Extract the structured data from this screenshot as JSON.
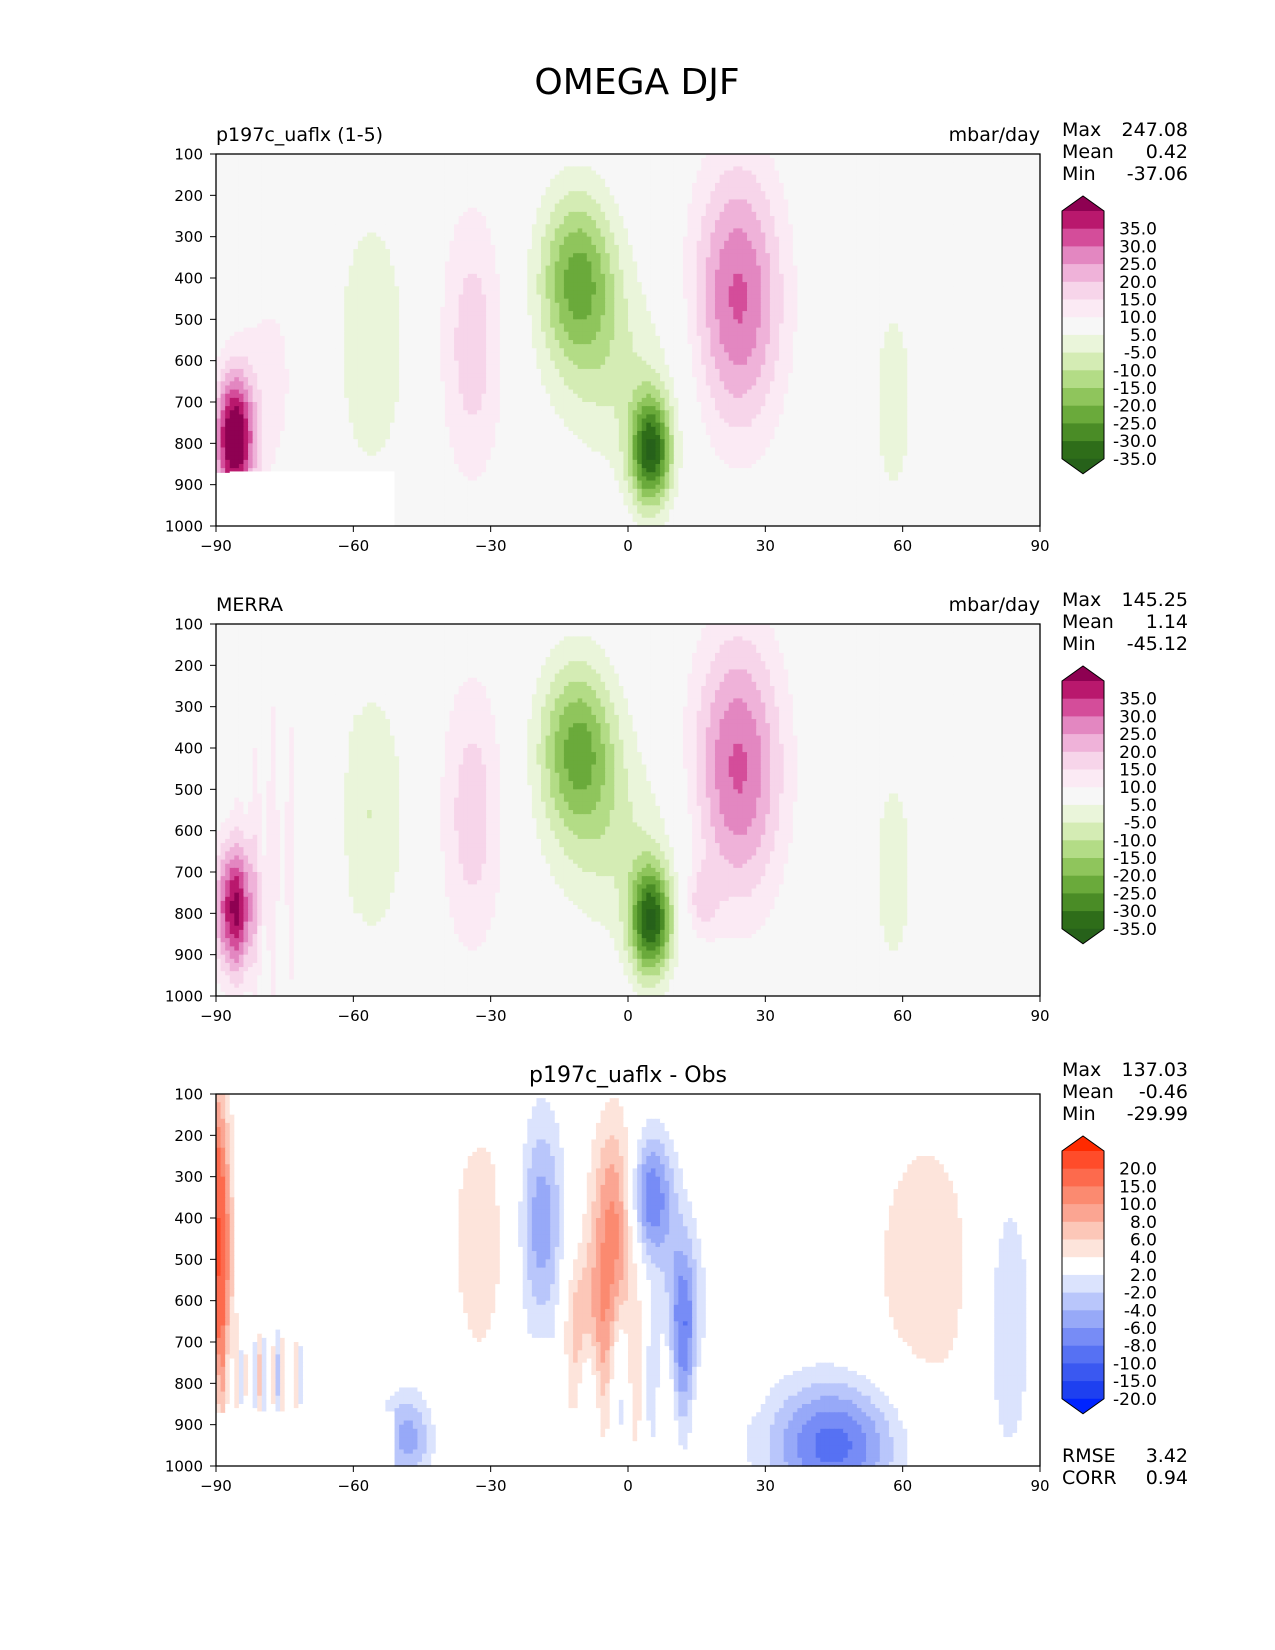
{
  "title": "OMEGA DJF",
  "chart_data": [
    {
      "type": "heatmap",
      "name": "test",
      "left_title": "p197c_uaflx (1-5)",
      "center_title": "",
      "units": "mbar/day",
      "stats": [
        {
          "label": "Max",
          "value": "247.08"
        },
        {
          "label": "Mean",
          "value": "0.42"
        },
        {
          "label": "Min",
          "value": "-37.06"
        }
      ],
      "footer_stats": [],
      "x_ticks": [
        "−90",
        "−60",
        "−30",
        "0",
        "30",
        "60",
        "90"
      ],
      "x_values": [
        -90,
        -60,
        -30,
        0,
        30,
        60,
        90
      ],
      "xlim": [
        -90,
        90
      ],
      "y_ticks": [
        "100",
        "200",
        "300",
        "400",
        "500",
        "600",
        "700",
        "800",
        "900",
        "1000"
      ],
      "y_values": [
        100,
        200,
        300,
        400,
        500,
        600,
        700,
        800,
        900,
        1000
      ],
      "ylim": [
        100,
        1000
      ],
      "colorbar_labels": [
        "35.0",
        "30.0",
        "25.0",
        "20.0",
        "15.0",
        "10.0",
        "5.0",
        "-5.0",
        "-10.0",
        "-15.0",
        "-20.0",
        "-25.0",
        "-30.0",
        "-35.0"
      ],
      "colors": [
        "#8e0152",
        "#b9186d",
        "#d44d9a",
        "#e387c1",
        "#efb2d9",
        "#f7d5ea",
        "#fbeaf4",
        "#f7f7f7",
        "#eaf5da",
        "#d4ecb4",
        "#b3dc86",
        "#8fc55c",
        "#6aaa3b",
        "#4a8c26",
        "#2e6d19",
        "#26611a"
      ]
    },
    {
      "type": "heatmap",
      "name": "reference",
      "left_title": "MERRA",
      "center_title": "",
      "units": "mbar/day",
      "stats": [
        {
          "label": "Max",
          "value": "145.25"
        },
        {
          "label": "Mean",
          "value": "1.14"
        },
        {
          "label": "Min",
          "value": "-45.12"
        }
      ],
      "footer_stats": [],
      "x_ticks": [
        "−90",
        "−60",
        "−30",
        "0",
        "30",
        "60",
        "90"
      ],
      "x_values": [
        -90,
        -60,
        -30,
        0,
        30,
        60,
        90
      ],
      "xlim": [
        -90,
        90
      ],
      "y_ticks": [
        "100",
        "200",
        "300",
        "400",
        "500",
        "600",
        "700",
        "800",
        "900",
        "1000"
      ],
      "y_values": [
        100,
        200,
        300,
        400,
        500,
        600,
        700,
        800,
        900,
        1000
      ],
      "ylim": [
        100,
        1000
      ],
      "colorbar_labels": [
        "35.0",
        "30.0",
        "25.0",
        "20.0",
        "15.0",
        "10.0",
        "5.0",
        "-5.0",
        "-10.0",
        "-15.0",
        "-20.0",
        "-25.0",
        "-30.0",
        "-35.0"
      ],
      "colors": [
        "#8e0152",
        "#b9186d",
        "#d44d9a",
        "#e387c1",
        "#efb2d9",
        "#f7d5ea",
        "#fbeaf4",
        "#f7f7f7",
        "#eaf5da",
        "#d4ecb4",
        "#b3dc86",
        "#8fc55c",
        "#6aaa3b",
        "#4a8c26",
        "#2e6d19",
        "#26611a"
      ]
    },
    {
      "type": "heatmap",
      "name": "difference",
      "left_title": "",
      "center_title": "p197c_uaflx - Obs",
      "units": "",
      "stats": [
        {
          "label": "Max",
          "value": "137.03"
        },
        {
          "label": "Mean",
          "value": "-0.46"
        },
        {
          "label": "Min",
          "value": "-29.99"
        }
      ],
      "footer_stats": [
        {
          "label": "RMSE",
          "value": "3.42"
        },
        {
          "label": "CORR",
          "value": "0.94"
        }
      ],
      "x_ticks": [
        "−90",
        "−60",
        "−30",
        "0",
        "30",
        "60",
        "90"
      ],
      "x_values": [
        -90,
        -60,
        -30,
        0,
        30,
        60,
        90
      ],
      "xlim": [
        -90,
        90
      ],
      "y_ticks": [
        "100",
        "200",
        "300",
        "400",
        "500",
        "600",
        "700",
        "800",
        "900",
        "1000"
      ],
      "y_values": [
        100,
        200,
        300,
        400,
        500,
        600,
        700,
        800,
        900,
        1000
      ],
      "ylim": [
        100,
        1000
      ],
      "colorbar_labels": [
        "20.0",
        "15.0",
        "10.0",
        "8.0",
        "6.0",
        "4.0",
        "2.0",
        "-2.0",
        "-4.0",
        "-6.0",
        "-8.0",
        "-10.0",
        "-15.0",
        "-20.0"
      ],
      "colors": [
        "#ff2a00",
        "#ff4c2a",
        "#fd6a4d",
        "#fb8a70",
        "#fba592",
        "#fcc7b8",
        "#fde4db",
        "#ffffff",
        "#dbe3fd",
        "#b9c6fb",
        "#97a9f8",
        "#778cf6",
        "#5671f3",
        "#3a58f1",
        "#1e40f0",
        "#0024ff"
      ]
    }
  ]
}
